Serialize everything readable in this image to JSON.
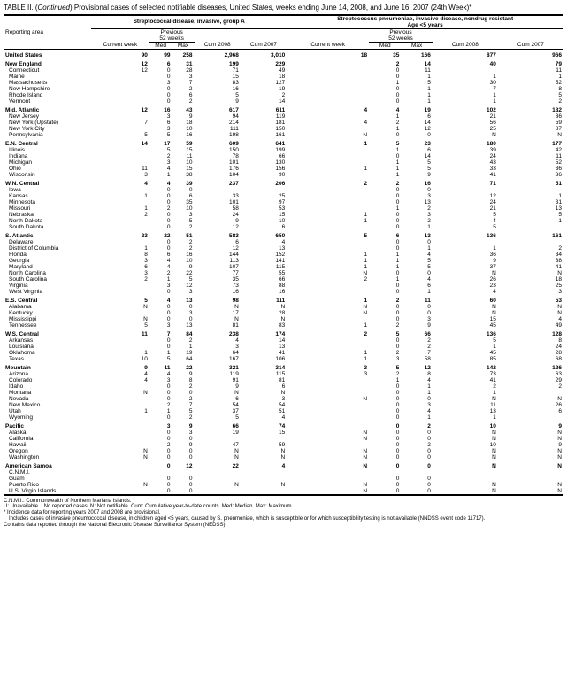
{
  "title_prefix": "TABLE II. (",
  "title_cont": "Continued",
  "title_rest": ") Provisional cases of selected notifiable diseases, United States, weeks ending June 14, 2008, and June 16, 2007 (24th Week)*",
  "group_a": "Streptococcal disease, invasive, group A",
  "group_b_line1": "Streptococcus pneumoniae, invasive disease, nondrug resistant",
  "group_b_line2": "Age <5 years",
  "prev_label": "Previous",
  "weeks_label": "52 weeks",
  "cols": {
    "reporting": "Reporting area",
    "current": "Current week",
    "med": "Med",
    "max": "Max",
    "cum08": "Cum 2008",
    "cum07": "Cum 2007"
  },
  "rows": [
    {
      "t": "total",
      "l": "United States",
      "a": [
        "90",
        "99",
        "258",
        "2,968",
        "3,010"
      ],
      "b": [
        "18",
        "35",
        "166",
        "877",
        "966"
      ]
    },
    {
      "t": "region",
      "l": "New England",
      "a": [
        "12",
        "6",
        "31",
        "199",
        "229"
      ],
      "b": [
        "",
        "2",
        "14",
        "40",
        "79"
      ]
    },
    {
      "t": "sub",
      "l": "Connecticut",
      "a": [
        "12",
        "0",
        "28",
        "71",
        "49"
      ],
      "b": [
        "",
        "0",
        "11",
        "",
        "11"
      ]
    },
    {
      "t": "sub",
      "l": "Maine",
      "a": [
        "",
        "0",
        "3",
        "15",
        "18"
      ],
      "b": [
        "",
        "0",
        "1",
        "1",
        "1"
      ]
    },
    {
      "t": "sub",
      "l": "Massachusetts",
      "a": [
        "",
        "3",
        "7",
        "83",
        "127"
      ],
      "b": [
        "",
        "1",
        "5",
        "30",
        "52"
      ]
    },
    {
      "t": "sub",
      "l": "New Hampshire",
      "a": [
        "",
        "0",
        "2",
        "16",
        "19"
      ],
      "b": [
        "",
        "0",
        "1",
        "7",
        "8"
      ]
    },
    {
      "t": "sub",
      "l": "Rhode Island",
      "a": [
        "",
        "0",
        "6",
        "5",
        "2"
      ],
      "b": [
        "",
        "0",
        "1",
        "1",
        "5"
      ]
    },
    {
      "t": "sub",
      "l": "Vermont",
      "a": [
        "",
        "0",
        "2",
        "9",
        "14"
      ],
      "b": [
        "",
        "0",
        "1",
        "1",
        "2"
      ]
    },
    {
      "t": "region",
      "l": "Mid. Atlantic",
      "a": [
        "12",
        "16",
        "43",
        "617",
        "611"
      ],
      "b": [
        "4",
        "4",
        "19",
        "102",
        "182"
      ]
    },
    {
      "t": "sub",
      "l": "New Jersey",
      "a": [
        "",
        "3",
        "9",
        "94",
        "119"
      ],
      "b": [
        "",
        "1",
        "6",
        "21",
        "36"
      ]
    },
    {
      "t": "sub",
      "l": "New York (Upstate)",
      "a": [
        "7",
        "6",
        "18",
        "214",
        "181"
      ],
      "b": [
        "4",
        "2",
        "14",
        "56",
        "59"
      ]
    },
    {
      "t": "sub",
      "l": "New York City",
      "a": [
        "",
        "3",
        "10",
        "111",
        "150"
      ],
      "b": [
        "",
        "1",
        "12",
        "25",
        "87"
      ]
    },
    {
      "t": "sub",
      "l": "Pennsylvania",
      "a": [
        "5",
        "5",
        "16",
        "198",
        "161"
      ],
      "b": [
        "N",
        "0",
        "0",
        "N",
        "N"
      ]
    },
    {
      "t": "region",
      "l": "E.N. Central",
      "a": [
        "14",
        "17",
        "59",
        "609",
        "641"
      ],
      "b": [
        "1",
        "5",
        "23",
        "180",
        "177"
      ]
    },
    {
      "t": "sub",
      "l": "Illinois",
      "a": [
        "",
        "5",
        "15",
        "150",
        "199"
      ],
      "b": [
        "",
        "1",
        "6",
        "39",
        "42"
      ]
    },
    {
      "t": "sub",
      "l": "Indiana",
      "a": [
        "",
        "2",
        "11",
        "78",
        "66"
      ],
      "b": [
        "",
        "0",
        "14",
        "24",
        "11"
      ]
    },
    {
      "t": "sub",
      "l": "Michigan",
      "a": [
        "",
        "3",
        "10",
        "101",
        "130"
      ],
      "b": [
        "",
        "1",
        "5",
        "43",
        "52"
      ]
    },
    {
      "t": "sub",
      "l": "Ohio",
      "a": [
        "11",
        "4",
        "15",
        "176",
        "156"
      ],
      "b": [
        "1",
        "1",
        "5",
        "33",
        "36"
      ]
    },
    {
      "t": "sub",
      "l": "Wisconsin",
      "a": [
        "3",
        "1",
        "38",
        "104",
        "90"
      ],
      "b": [
        "",
        "1",
        "9",
        "41",
        "36"
      ]
    },
    {
      "t": "region",
      "l": "W.N. Central",
      "a": [
        "4",
        "4",
        "39",
        "237",
        "206"
      ],
      "b": [
        "2",
        "2",
        "16",
        "71",
        "51"
      ]
    },
    {
      "t": "sub",
      "l": "Iowa",
      "a": [
        "",
        "0",
        "0",
        "",
        ""
      ],
      "b": [
        "",
        "0",
        "0",
        "",
        ""
      ]
    },
    {
      "t": "sub",
      "l": "Kansas",
      "a": [
        "1",
        "0",
        "6",
        "33",
        "25"
      ],
      "b": [
        "",
        "0",
        "3",
        "12",
        "1"
      ]
    },
    {
      "t": "sub",
      "l": "Minnesota",
      "a": [
        "",
        "0",
        "35",
        "101",
        "97"
      ],
      "b": [
        "",
        "0",
        "13",
        "24",
        "31"
      ]
    },
    {
      "t": "sub",
      "l": "Missouri",
      "a": [
        "1",
        "2",
        "10",
        "58",
        "53"
      ],
      "b": [
        "",
        "1",
        "2",
        "21",
        "13"
      ]
    },
    {
      "t": "sub",
      "l": "Nebraska",
      "a": [
        "2",
        "0",
        "3",
        "24",
        "15"
      ],
      "b": [
        "1",
        "0",
        "3",
        "5",
        "5"
      ]
    },
    {
      "t": "sub",
      "l": "North Dakota",
      "a": [
        "",
        "0",
        "5",
        "9",
        "10"
      ],
      "b": [
        "1",
        "0",
        "2",
        "4",
        "1"
      ]
    },
    {
      "t": "sub",
      "l": "South Dakota",
      "a": [
        "",
        "0",
        "2",
        "12",
        "6"
      ],
      "b": [
        "",
        "0",
        "1",
        "5",
        ""
      ]
    },
    {
      "t": "region",
      "l": "S. Atlantic",
      "a": [
        "23",
        "22",
        "51",
        "583",
        "650"
      ],
      "b": [
        "5",
        "6",
        "13",
        "136",
        "161"
      ]
    },
    {
      "t": "sub",
      "l": "Delaware",
      "a": [
        "",
        "0",
        "2",
        "6",
        "4"
      ],
      "b": [
        "",
        "0",
        "0",
        "",
        ""
      ]
    },
    {
      "t": "sub",
      "l": "District of Columbia",
      "a": [
        "1",
        "0",
        "2",
        "12",
        "13"
      ],
      "b": [
        "",
        "0",
        "1",
        "1",
        "2"
      ]
    },
    {
      "t": "sub",
      "l": "Florida",
      "a": [
        "8",
        "6",
        "16",
        "144",
        "152"
      ],
      "b": [
        "1",
        "1",
        "4",
        "36",
        "34"
      ]
    },
    {
      "t": "sub",
      "l": "Georgia",
      "a": [
        "3",
        "4",
        "10",
        "113",
        "141"
      ],
      "b": [
        "1",
        "1",
        "5",
        "9",
        "38"
      ]
    },
    {
      "t": "sub",
      "l": "Maryland",
      "a": [
        "6",
        "4",
        "9",
        "107",
        "115"
      ],
      "b": [
        "1",
        "1",
        "5",
        "37",
        "41"
      ]
    },
    {
      "t": "sub",
      "l": "North Carolina",
      "a": [
        "3",
        "2",
        "22",
        "77",
        "55"
      ],
      "b": [
        "N",
        "0",
        "0",
        "N",
        "N"
      ]
    },
    {
      "t": "sub",
      "l": "South Carolina",
      "a": [
        "2",
        "1",
        "5",
        "35",
        "66"
      ],
      "b": [
        "2",
        "1",
        "4",
        "26",
        "18"
      ]
    },
    {
      "t": "sub",
      "l": "Virginia",
      "a": [
        "",
        "3",
        "12",
        "73",
        "88"
      ],
      "b": [
        "",
        "0",
        "6",
        "23",
        "25"
      ]
    },
    {
      "t": "sub",
      "l": "West Virginia",
      "a": [
        "",
        "0",
        "3",
        "16",
        "16"
      ],
      "b": [
        "",
        "0",
        "1",
        "4",
        "3"
      ]
    },
    {
      "t": "region",
      "l": "E.S. Central",
      "a": [
        "5",
        "4",
        "13",
        "98",
        "111"
      ],
      "b": [
        "1",
        "2",
        "11",
        "60",
        "53"
      ]
    },
    {
      "t": "sub",
      "l": "Alabama",
      "a": [
        "N",
        "0",
        "0",
        "N",
        "N"
      ],
      "b": [
        "N",
        "0",
        "0",
        "N",
        "N"
      ]
    },
    {
      "t": "sub",
      "l": "Kentucky",
      "a": [
        "",
        "0",
        "3",
        "17",
        "28"
      ],
      "b": [
        "N",
        "0",
        "0",
        "N",
        "N"
      ]
    },
    {
      "t": "sub",
      "l": "Mississippi",
      "a": [
        "N",
        "0",
        "0",
        "N",
        "N"
      ],
      "b": [
        "",
        "0",
        "3",
        "15",
        "4"
      ]
    },
    {
      "t": "sub",
      "l": "Tennessee",
      "a": [
        "5",
        "3",
        "13",
        "81",
        "83"
      ],
      "b": [
        "1",
        "2",
        "9",
        "45",
        "49"
      ]
    },
    {
      "t": "region",
      "l": "W.S. Central",
      "a": [
        "11",
        "7",
        "84",
        "238",
        "174"
      ],
      "b": [
        "2",
        "5",
        "66",
        "136",
        "128"
      ]
    },
    {
      "t": "sub",
      "l": "Arkansas",
      "a": [
        "",
        "0",
        "2",
        "4",
        "14"
      ],
      "b": [
        "",
        "0",
        "2",
        "5",
        "8"
      ]
    },
    {
      "t": "sub",
      "l": "Louisiana",
      "a": [
        "",
        "0",
        "1",
        "3",
        "13"
      ],
      "b": [
        "",
        "0",
        "2",
        "1",
        "24"
      ]
    },
    {
      "t": "sub",
      "l": "Oklahoma",
      "a": [
        "1",
        "1",
        "19",
        "64",
        "41"
      ],
      "b": [
        "1",
        "2",
        "7",
        "45",
        "28"
      ]
    },
    {
      "t": "sub",
      "l": "Texas",
      "a": [
        "10",
        "5",
        "64",
        "167",
        "106"
      ],
      "b": [
        "1",
        "3",
        "58",
        "85",
        "68"
      ]
    },
    {
      "t": "region",
      "l": "Mountain",
      "a": [
        "9",
        "11",
        "22",
        "321",
        "314"
      ],
      "b": [
        "3",
        "5",
        "12",
        "142",
        "126"
      ]
    },
    {
      "t": "sub",
      "l": "Arizona",
      "a": [
        "4",
        "4",
        "9",
        "119",
        "115"
      ],
      "b": [
        "3",
        "2",
        "8",
        "73",
        "63"
      ]
    },
    {
      "t": "sub",
      "l": "Colorado",
      "a": [
        "4",
        "3",
        "8",
        "91",
        "81"
      ],
      "b": [
        "",
        "1",
        "4",
        "41",
        "29"
      ]
    },
    {
      "t": "sub",
      "l": "Idaho",
      "a": [
        "",
        "0",
        "2",
        "9",
        "6"
      ],
      "b": [
        "",
        "0",
        "1",
        "2",
        "2"
      ]
    },
    {
      "t": "sub",
      "l": "Montana",
      "a": [
        "N",
        "0",
        "0",
        "N",
        "N"
      ],
      "b": [
        "",
        "0",
        "1",
        "1",
        ""
      ]
    },
    {
      "t": "sub",
      "l": "Nevada",
      "a": [
        "",
        "0",
        "2",
        "6",
        "3"
      ],
      "b": [
        "N",
        "0",
        "0",
        "N",
        "N"
      ]
    },
    {
      "t": "sub",
      "l": "New Mexico",
      "a": [
        "",
        "2",
        "7",
        "54",
        "54"
      ],
      "b": [
        "",
        "0",
        "3",
        "11",
        "26"
      ]
    },
    {
      "t": "sub",
      "l": "Utah",
      "a": [
        "1",
        "1",
        "5",
        "37",
        "51"
      ],
      "b": [
        "",
        "0",
        "4",
        "13",
        "6"
      ]
    },
    {
      "t": "sub",
      "l": "Wyoming",
      "a": [
        "",
        "0",
        "2",
        "5",
        "4"
      ],
      "b": [
        "",
        "0",
        "1",
        "1",
        ""
      ]
    },
    {
      "t": "region",
      "l": "Pacific",
      "a": [
        "",
        "3",
        "9",
        "66",
        "74"
      ],
      "b": [
        "",
        "0",
        "2",
        "10",
        "9"
      ]
    },
    {
      "t": "sub",
      "l": "Alaska",
      "a": [
        "",
        "0",
        "3",
        "19",
        "15"
      ],
      "b": [
        "N",
        "0",
        "0",
        "N",
        "N"
      ]
    },
    {
      "t": "sub",
      "l": "California",
      "a": [
        "",
        "0",
        "0",
        "",
        ""
      ],
      "b": [
        "N",
        "0",
        "0",
        "N",
        "N"
      ]
    },
    {
      "t": "sub",
      "l": "Hawaii",
      "a": [
        "",
        "2",
        "9",
        "47",
        "59"
      ],
      "b": [
        "",
        "0",
        "2",
        "10",
        "9"
      ]
    },
    {
      "t": "sub",
      "l": "Oregon",
      "a": [
        "N",
        "0",
        "0",
        "N",
        "N"
      ],
      "b": [
        "N",
        "0",
        "0",
        "N",
        "N"
      ]
    },
    {
      "t": "sub",
      "l": "Washington",
      "a": [
        "N",
        "0",
        "0",
        "N",
        "N"
      ],
      "b": [
        "N",
        "0",
        "0",
        "N",
        "N"
      ]
    },
    {
      "t": "region",
      "l": "American Samoa",
      "a": [
        "",
        "0",
        "12",
        "22",
        "4"
      ],
      "b": [
        "N",
        "0",
        "0",
        "N",
        "N"
      ]
    },
    {
      "t": "sub",
      "l": "C.N.M.I.",
      "a": [
        "",
        "",
        "",
        "",
        ""
      ],
      "b": [
        "",
        "",
        "",
        "",
        ""
      ]
    },
    {
      "t": "sub",
      "l": "Guam",
      "a": [
        "",
        "0",
        "0",
        "",
        ""
      ],
      "b": [
        "",
        "0",
        "0",
        "",
        ""
      ]
    },
    {
      "t": "sub",
      "l": "Puerto Rico",
      "a": [
        "N",
        "0",
        "0",
        "N",
        "N"
      ],
      "b": [
        "N",
        "0",
        "0",
        "N",
        "N"
      ]
    },
    {
      "t": "sub",
      "l": "U.S. Virgin Islands",
      "a": [
        "",
        "0",
        "0",
        "",
        ""
      ],
      "b": [
        "N",
        "0",
        "0",
        "N",
        "N"
      ]
    }
  ],
  "footnotes": [
    "C.N.M.I.: Commonwealth of Northern Mariana Islands.",
    "U: Unavailable.    : No reported cases.    N: Not notifiable.    Cum: Cumulative year-to-date counts.    Med: Median.    Max: Maximum.",
    "* Incidence data for reporting years 2007 and 2008 are provisional.",
    " Includes cases of invasive pneumococcal disease, in children aged <5 years, caused by S. pneumoniae, which is susceptible or for which susceptibility testing is not available (NNDSS event code 11717).",
    " Contains data reported through the National Electronic Disease Surveillance System (NEDSS)."
  ],
  "weeks_stacked": "52 weeks"
}
